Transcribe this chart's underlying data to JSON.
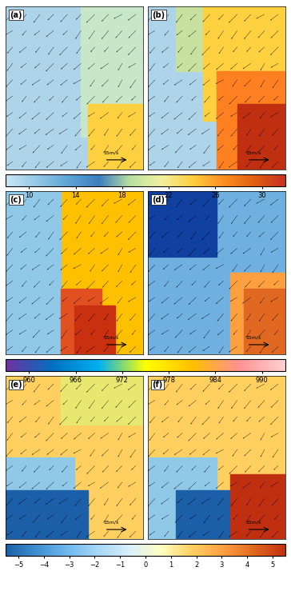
{
  "panel_labels": [
    "(a)",
    "(b)",
    "(c)",
    "(d)",
    "(e)",
    "(f)"
  ],
  "wind_colorbar": {
    "values": [
      10,
      14,
      18,
      22,
      26,
      30
    ],
    "colors": [
      "#d6eaf8",
      "#aed6f1",
      "#5dade2",
      "#2e86c1",
      "#a9dfbf",
      "#f9e79f",
      "#f5cba7",
      "#f0b27a",
      "#e59866",
      "#cb4335"
    ],
    "label_ticks": [
      10,
      14,
      18,
      22,
      26,
      30
    ],
    "n_colors": 10
  },
  "pressure_colorbar": {
    "values": [
      960,
      966,
      972,
      978,
      984,
      990
    ],
    "label_ticks": [
      960,
      966,
      972,
      978,
      984,
      990
    ],
    "colors": [
      "#6a0dad",
      "#2980b9",
      "#5dade2",
      "#f9e79f",
      "#f0b27a",
      "#f1948a",
      "#fadbd8"
    ],
    "n_colors": 7
  },
  "temp_colorbar": {
    "values": [
      -5,
      -4,
      -3,
      -2,
      -1,
      0,
      1,
      2,
      3,
      4,
      5
    ],
    "label_ticks": [
      -5,
      -4,
      -3,
      -2,
      -1,
      0,
      1,
      2,
      3,
      4,
      5
    ],
    "colors": [
      "#2980b9",
      "#5dade2",
      "#7fb3d3",
      "#aed6f1",
      "#d6eaf8",
      "#f9e79f",
      "#f5cba7",
      "#f0b27a",
      "#e59866",
      "#cb4335"
    ],
    "n_colors": 10
  },
  "reference_wind_speed": "15m/s",
  "figure_width": 3.64,
  "figure_height": 7.59,
  "dpi": 100
}
